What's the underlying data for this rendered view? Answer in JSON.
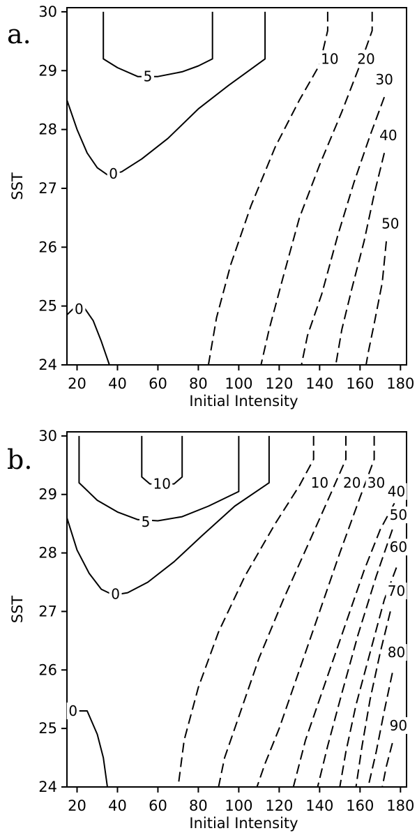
{
  "chart_data": [
    {
      "type": "contour",
      "panel_label": "a.",
      "xlabel": "Initial Intensity",
      "ylabel": "SST",
      "xlim": [
        15,
        183
      ],
      "ylim": [
        24,
        30.07
      ],
      "x_ticks": [
        20,
        40,
        60,
        80,
        100,
        120,
        140,
        160,
        180
      ],
      "y_ticks": [
        24,
        25,
        26,
        27,
        28,
        29,
        30
      ],
      "contours": [
        {
          "level": "5",
          "style": "solid",
          "label_at": [
            55,
            28.9
          ],
          "points": [
            [
              33,
              30
            ],
            [
              33,
              29.2
            ],
            [
              40,
              29.05
            ],
            [
              50,
              28.9
            ],
            [
              60,
              28.9
            ],
            [
              72,
              28.98
            ],
            [
              80,
              29.08
            ],
            [
              87,
              29.2
            ],
            [
              87,
              30
            ]
          ]
        },
        {
          "level": "0",
          "style": "solid",
          "label_at": [
            38,
            27.25
          ],
          "points": [
            [
              15,
              28.5
            ],
            [
              20,
              28.0
            ],
            [
              25,
              27.6
            ],
            [
              30,
              27.35
            ],
            [
              35,
              27.23
            ],
            [
              42,
              27.28
            ],
            [
              52,
              27.5
            ],
            [
              65,
              27.85
            ],
            [
              80,
              28.35
            ],
            [
              95,
              28.75
            ],
            [
              105,
              29.0
            ],
            [
              113,
              29.2
            ],
            [
              113,
              30
            ]
          ]
        },
        {
          "level": "0",
          "style": "solid",
          "label_at": [
            21,
            24.95
          ],
          "points": [
            [
              15,
              24.85
            ],
            [
              18,
              24.95
            ],
            [
              23,
              25.0
            ],
            [
              28,
              24.75
            ],
            [
              32,
              24.4
            ],
            [
              36,
              24
            ]
          ]
        },
        {
          "level": "10",
          "style": "dashed",
          "label_at": [
            145,
            29.2
          ],
          "points": [
            [
              144,
              30
            ],
            [
              144,
              29.68
            ],
            [
              140,
              29.1
            ],
            [
              130,
              28.5
            ],
            [
              118,
              27.7
            ],
            [
              106,
              26.7
            ],
            [
              96,
              25.7
            ],
            [
              89,
              24.8
            ],
            [
              85,
              24
            ]
          ]
        },
        {
          "level": "20",
          "style": "dashed",
          "label_at": [
            163,
            29.2
          ],
          "points": [
            [
              166,
              30
            ],
            [
              166,
              29.68
            ],
            [
              160,
              29.1
            ],
            [
              151,
              28.3
            ],
            [
              140,
              27.4
            ],
            [
              130,
              26.5
            ],
            [
              122,
              25.5
            ],
            [
              115,
              24.6
            ],
            [
              111,
              24
            ]
          ]
        },
        {
          "level": "30",
          "style": "dashed",
          "label_at": [
            172,
            28.85
          ],
          "points": [
            [
              172,
              28.55
            ],
            [
              165,
              27.9
            ],
            [
              157,
              27.1
            ],
            [
              149,
              26.2
            ],
            [
              141,
              25.2
            ],
            [
              134,
              24.5
            ],
            [
              131,
              24
            ]
          ]
        },
        {
          "level": "40",
          "style": "dashed",
          "label_at": [
            174,
            27.9
          ],
          "points": [
            [
              172,
              27.6
            ],
            [
              167,
              26.9
            ],
            [
              162,
              26.1
            ],
            [
              156,
              25.3
            ],
            [
              151,
              24.6
            ],
            [
              148,
              24
            ]
          ]
        },
        {
          "level": "50",
          "style": "dashed",
          "label_at": [
            175,
            26.4
          ],
          "points": [
            [
              173,
              26.1
            ],
            [
              171,
              25.4
            ],
            [
              167,
              24.7
            ],
            [
              164,
              24.2
            ],
            [
              163,
              24
            ]
          ]
        }
      ]
    },
    {
      "type": "contour",
      "panel_label": "b.",
      "xlabel": "Initial Intensity",
      "ylabel": "SST",
      "xlim": [
        15,
        183
      ],
      "ylim": [
        24,
        30.07
      ],
      "x_ticks": [
        20,
        40,
        60,
        80,
        100,
        120,
        140,
        160,
        180
      ],
      "y_ticks": [
        24,
        25,
        26,
        27,
        28,
        29,
        30
      ],
      "contours": [
        {
          "level": "10",
          "style": "solid",
          "label_at": [
            62,
            29.18
          ],
          "points": [
            [
              52,
              30
            ],
            [
              52,
              29.3
            ],
            [
              56,
              29.18
            ],
            [
              68,
              29.18
            ],
            [
              72,
              29.3
            ],
            [
              72,
              30
            ]
          ]
        },
        {
          "level": "5",
          "style": "solid",
          "label_at": [
            54,
            28.53
          ],
          "points": [
            [
              21,
              30
            ],
            [
              21,
              29.2
            ],
            [
              30,
              28.9
            ],
            [
              40,
              28.7
            ],
            [
              50,
              28.57
            ],
            [
              60,
              28.55
            ],
            [
              72,
              28.62
            ],
            [
              85,
              28.8
            ],
            [
              100,
              29.05
            ],
            [
              100,
              30
            ]
          ]
        },
        {
          "level": "0",
          "style": "solid",
          "label_at": [
            39,
            27.3
          ],
          "points": [
            [
              15,
              28.6
            ],
            [
              20,
              28.05
            ],
            [
              26,
              27.65
            ],
            [
              32,
              27.38
            ],
            [
              38,
              27.28
            ],
            [
              45,
              27.32
            ],
            [
              55,
              27.5
            ],
            [
              68,
              27.85
            ],
            [
              82,
              28.3
            ],
            [
              98,
              28.8
            ],
            [
              115,
              29.2
            ],
            [
              115,
              30
            ]
          ]
        },
        {
          "level": "0",
          "style": "solid",
          "label_at": [
            18,
            25.3
          ],
          "points": [
            [
              15,
              25.2
            ],
            [
              20,
              25.3
            ],
            [
              25,
              25.3
            ],
            [
              30,
              24.9
            ],
            [
              33,
              24.5
            ],
            [
              35,
              24
            ]
          ]
        },
        {
          "level": "10",
          "style": "dashed",
          "label_at": [
            140,
            29.2
          ],
          "points": [
            [
              137,
              30
            ],
            [
              137,
              29.6
            ],
            [
              130,
              29.15
            ],
            [
              118,
              28.5
            ],
            [
              103,
              27.6
            ],
            [
              90,
              26.65
            ],
            [
              80,
              25.7
            ],
            [
              73,
              24.8
            ],
            [
              70,
              24
            ]
          ]
        },
        {
          "level": "20",
          "style": "dashed",
          "label_at": [
            156,
            29.2
          ],
          "points": [
            [
              153,
              30
            ],
            [
              153,
              29.6
            ],
            [
              146,
              29.05
            ],
            [
              135,
              28.2
            ],
            [
              122,
              27.2
            ],
            [
              110,
              26.2
            ],
            [
              100,
              25.2
            ],
            [
              93,
              24.5
            ],
            [
              90,
              24
            ]
          ]
        },
        {
          "level": "30",
          "style": "dashed",
          "label_at": [
            168,
            29.2
          ],
          "points": [
            [
              167,
              30
            ],
            [
              167,
              29.6
            ],
            [
              160,
              28.95
            ],
            [
              150,
              28.0
            ],
            [
              140,
              27.0
            ],
            [
              130,
              26.0
            ],
            [
              120,
              25.0
            ],
            [
              113,
              24.4
            ],
            [
              109,
              24
            ]
          ]
        },
        {
          "level": "40",
          "style": "dashed",
          "label_at": [
            178,
            29.05
          ],
          "points": [
            [
              177,
              28.85
            ],
            [
              170,
              28.4
            ],
            [
              162,
              27.7
            ],
            [
              152,
              26.7
            ],
            [
              142,
              25.7
            ],
            [
              133,
              24.8
            ],
            [
              127,
              24
            ]
          ]
        },
        {
          "level": "50",
          "style": "dashed",
          "label_at": [
            179,
            28.65
          ],
          "points": [
            [
              176,
              28.4
            ],
            [
              168,
              27.6
            ],
            [
              159,
              26.6
            ],
            [
              151,
              25.6
            ],
            [
              144,
              24.7
            ],
            [
              139,
              24
            ]
          ]
        },
        {
          "level": "60",
          "style": "dashed",
          "label_at": [
            179,
            28.1
          ],
          "points": [
            [
              178,
              27.75
            ],
            [
              172,
              27.2
            ],
            [
              165,
              26.3
            ],
            [
              158,
              25.4
            ],
            [
              153,
              24.6
            ],
            [
              150,
              24
            ]
          ]
        },
        {
          "level": "70",
          "style": "dashed",
          "label_at": [
            178,
            27.35
          ],
          "points": [
            [
              175,
              27.0
            ],
            [
              170,
              26.3
            ],
            [
              165,
              25.5
            ],
            [
              161,
              24.7
            ],
            [
              158,
              24
            ]
          ]
        },
        {
          "level": "80",
          "style": "dashed",
          "label_at": [
            178,
            26.3
          ],
          "points": [
            [
              176,
              25.95
            ],
            [
              172,
              25.3
            ],
            [
              168,
              24.6
            ],
            [
              164,
              24
            ]
          ]
        },
        {
          "level": "90",
          "style": "dashed",
          "label_at": [
            179,
            25.05
          ],
          "points": [
            [
              176,
              24.75
            ],
            [
              173,
              24.35
            ],
            [
              171,
              24
            ]
          ]
        }
      ]
    }
  ]
}
